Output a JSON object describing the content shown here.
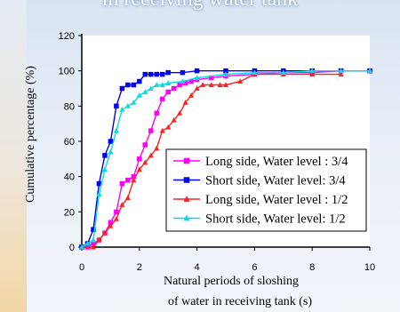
{
  "page": {
    "top_title": "in receiving water tank"
  },
  "chart_data": {
    "type": "line",
    "title": "",
    "xlabel": [
      "Natural periods of sloshing",
      "of water in receiving tank (s)"
    ],
    "ylabel": "Cumulative percentage (%)",
    "xlim": [
      0,
      10
    ],
    "ylim": [
      0,
      120
    ],
    "x_ticks": [
      0,
      2,
      4,
      6,
      8,
      10
    ],
    "y_ticks": [
      0,
      20,
      40,
      60,
      80,
      100,
      120
    ],
    "grid": false,
    "legend_position": "bottom-right",
    "series": [
      {
        "name": "Long side, Water level : 3/4",
        "color": "#ff00ff",
        "marker": "square",
        "x": [
          0.0,
          0.2,
          0.4,
          0.6,
          0.8,
          1.0,
          1.2,
          1.4,
          1.6,
          1.8,
          2.0,
          2.2,
          2.4,
          2.6,
          2.8,
          3.0,
          3.2,
          3.4,
          3.6,
          3.8,
          4.0,
          4.5,
          5.0,
          6.0,
          7.0,
          8.0,
          9.0,
          10.0
        ],
        "y": [
          0,
          0,
          2,
          4,
          8,
          14,
          20,
          36,
          38,
          40,
          50,
          58,
          66,
          76,
          84,
          88,
          90,
          92,
          93,
          94,
          95,
          96,
          97,
          98,
          99,
          99,
          100,
          100
        ]
      },
      {
        "name": "Short side, Water level: 3/4",
        "color": "#0000ff",
        "marker": "square",
        "x": [
          0.0,
          0.2,
          0.4,
          0.6,
          0.8,
          1.0,
          1.2,
          1.4,
          1.6,
          1.8,
          2.0,
          2.2,
          2.4,
          2.6,
          2.8,
          3.0,
          3.5,
          4.0,
          5.0,
          6.0,
          7.0,
          8.0,
          9.0,
          10.0
        ],
        "y": [
          0,
          2,
          10,
          36,
          52,
          60,
          80,
          90,
          92,
          92,
          94,
          98,
          98,
          98,
          98,
          99,
          99,
          100,
          100,
          100,
          100,
          100,
          100,
          100
        ]
      },
      {
        "name": "Long side, Water level : 1/2",
        "color": "#ff2020",
        "marker": "triangle",
        "x": [
          0.0,
          0.4,
          0.6,
          0.8,
          1.0,
          1.2,
          1.4,
          1.6,
          1.8,
          2.0,
          2.2,
          2.4,
          2.6,
          2.8,
          3.0,
          3.2,
          3.4,
          3.6,
          3.8,
          4.0,
          4.2,
          4.5,
          4.8,
          5.0,
          5.5,
          6.0,
          7.0,
          8.0,
          9.0
        ],
        "y": [
          0,
          0,
          4,
          8,
          12,
          16,
          24,
          28,
          38,
          44,
          48,
          52,
          56,
          66,
          68,
          72,
          76,
          82,
          86,
          90,
          92,
          92,
          92,
          92,
          94,
          98,
          98,
          98,
          98
        ]
      },
      {
        "name": "Short side, Water level: 1/2",
        "color": "#00e0e0",
        "marker": "triangle",
        "x": [
          0.0,
          0.2,
          0.4,
          0.6,
          0.8,
          1.0,
          1.2,
          1.4,
          1.6,
          1.8,
          2.0,
          2.2,
          2.4,
          2.6,
          2.8,
          3.0,
          3.5,
          4.0,
          5.0,
          6.0,
          7.0,
          8.0,
          9.0,
          10.0
        ],
        "y": [
          0,
          2,
          4,
          30,
          44,
          54,
          66,
          78,
          80,
          82,
          86,
          88,
          90,
          92,
          92,
          93,
          94,
          96,
          98,
          99,
          99,
          100,
          100,
          100
        ]
      }
    ]
  }
}
